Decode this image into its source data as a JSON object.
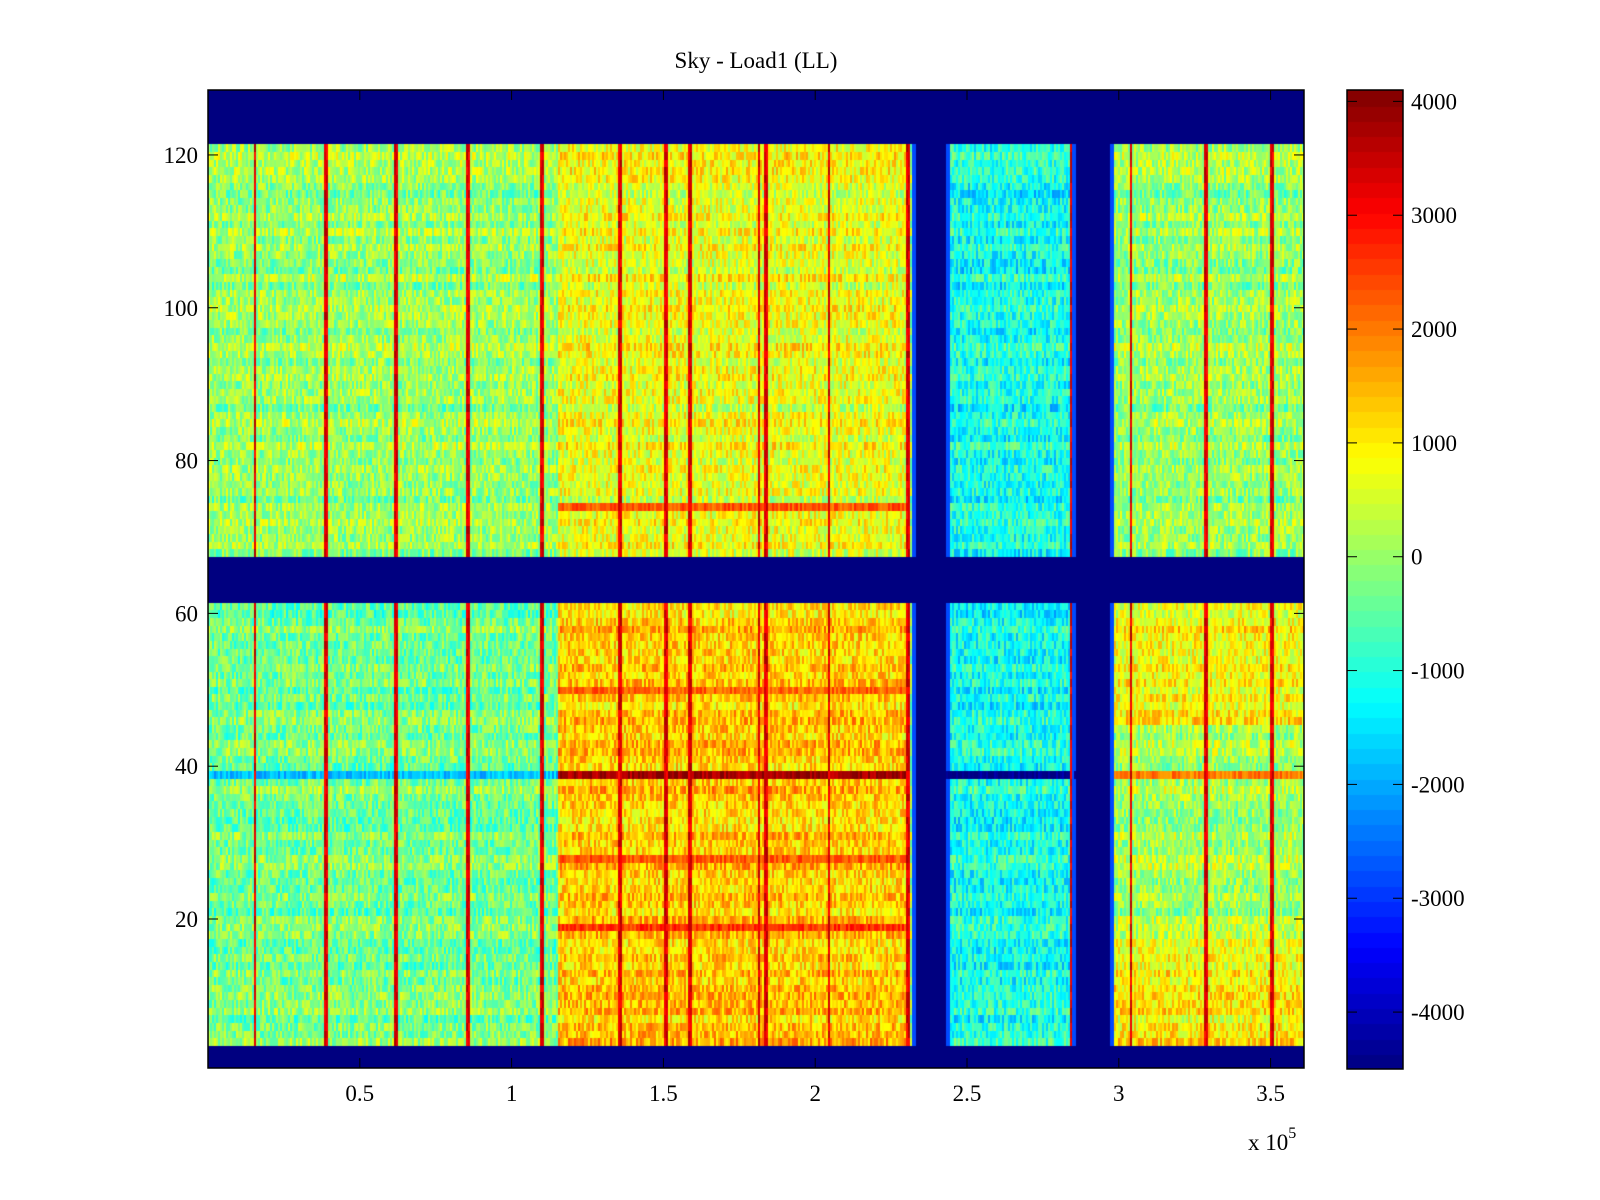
{
  "chart_data": {
    "type": "heatmap",
    "title": "Sky - Load1 (LL)",
    "xlabel": "",
    "ylabel": "",
    "x_multiplier_label": {
      "base": "x 10",
      "exponent": "5"
    },
    "xlim": [
      0,
      3.61
    ],
    "ylim": [
      0.5,
      128.5
    ],
    "x_ticks": [
      0.5,
      1,
      1.5,
      2,
      2.5,
      3,
      3.5
    ],
    "x_tick_labels": [
      "0.5",
      "1",
      "1.5",
      "2",
      "2.5",
      "3",
      "3.5"
    ],
    "y_ticks": [
      20,
      40,
      60,
      80,
      100,
      120
    ],
    "y_tick_labels": [
      "20",
      "40",
      "60",
      "80",
      "100",
      "120"
    ],
    "colormap": "jet",
    "clim": [
      -4500,
      4100
    ],
    "colorbar": {
      "ticks": [
        4000,
        3000,
        2000,
        1000,
        0,
        -1000,
        -2000,
        -3000,
        -4000
      ],
      "tick_labels": [
        "4000",
        "3000",
        "2000",
        "1000",
        "0",
        "-1000",
        "-2000",
        "-3000",
        "-4000"
      ]
    },
    "rows": 128,
    "masked_rows": [
      [
        1,
        3
      ],
      [
        62,
        67
      ],
      [
        122,
        128
      ]
    ],
    "masked_x_ranges": [
      [
        2.33,
        2.43
      ],
      [
        2.86,
        2.97
      ]
    ],
    "mask_value": -4500,
    "region_means": [
      {
        "x": [
          0,
          1.15
        ],
        "rows": [
          4,
          61
        ],
        "value": -300
      },
      {
        "x": [
          0,
          1.15
        ],
        "rows": [
          68,
          121
        ],
        "value": 0
      },
      {
        "x": [
          1.15,
          2.3
        ],
        "rows": [
          4,
          61
        ],
        "value": 1300
      },
      {
        "x": [
          1.15,
          2.3
        ],
        "rows": [
          68,
          121
        ],
        "value": 700
      },
      {
        "x": [
          2.43,
          2.86
        ],
        "rows": [
          4,
          121
        ],
        "value": -1100
      },
      {
        "x": [
          2.97,
          3.61
        ],
        "rows": [
          4,
          17
        ],
        "value": 900
      },
      {
        "x": [
          2.97,
          3.61
        ],
        "rows": [
          18,
          45
        ],
        "value": 100
      },
      {
        "x": [
          2.97,
          3.61
        ],
        "rows": [
          46,
          61
        ],
        "value": 900
      },
      {
        "x": [
          2.97,
          3.61
        ],
        "rows": [
          68,
          121
        ],
        "value": 0
      }
    ],
    "hot_rows": [
      {
        "row": 39,
        "x": [
          1.15,
          2.3
        ],
        "value": 3800
      },
      {
        "row": 39,
        "x": [
          2.43,
          2.86
        ],
        "value": -4500
      },
      {
        "row": 39,
        "x": [
          0,
          1.15
        ],
        "value": -1800
      },
      {
        "row": 39,
        "x": [
          2.97,
          3.61
        ],
        "value": 2000
      },
      {
        "row": 19,
        "x": [
          1.15,
          2.3
        ],
        "value": 2600
      },
      {
        "row": 28,
        "x": [
          1.15,
          2.3
        ],
        "value": 2300
      },
      {
        "row": 50,
        "x": [
          1.15,
          2.3
        ],
        "value": 2200
      },
      {
        "row": 74,
        "x": [
          1.15,
          2.3
        ],
        "value": 2300
      }
    ],
    "spike_lines_x": [
      0.155,
      0.39,
      0.62,
      0.855,
      1.1,
      1.355,
      1.51,
      1.585,
      1.815,
      1.84,
      2.045,
      2.305,
      2.845,
      3.04,
      3.285,
      3.505
    ],
    "spike_value": 3300
  }
}
